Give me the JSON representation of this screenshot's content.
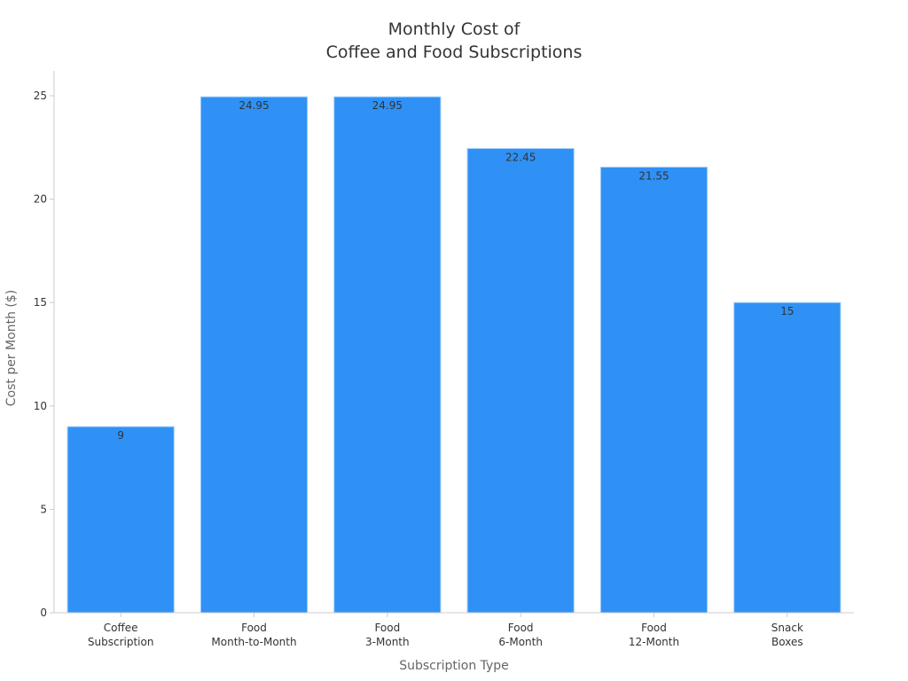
{
  "chart_data": {
    "type": "bar",
    "title_lines": [
      "Monthly Cost of",
      "Coffee and Food Subscriptions"
    ],
    "xlabel": "Subscription Type",
    "ylabel": "Cost per Month ($)",
    "categories": [
      [
        "Coffee",
        "Subscription"
      ],
      [
        "Food",
        "Month-to-Month"
      ],
      [
        "Food",
        "3-Month"
      ],
      [
        "Food",
        "6-Month"
      ],
      [
        "Food",
        "12-Month"
      ],
      [
        "Snack",
        "Boxes"
      ]
    ],
    "values": [
      9,
      24.95,
      24.95,
      22.45,
      21.55,
      15
    ],
    "value_labels": [
      "9",
      "24.95",
      "24.95",
      "22.45",
      "21.55",
      "15"
    ],
    "ylim": [
      0,
      26.2
    ],
    "yticks": [
      0,
      5,
      10,
      15,
      20,
      25
    ],
    "grid": false,
    "legend": "none",
    "colors": {
      "bar": "#2f91f5",
      "bar_edge": "#a9d2fb",
      "axis": "#cccccc",
      "text": "#333333",
      "axis_label": "#666666"
    }
  }
}
